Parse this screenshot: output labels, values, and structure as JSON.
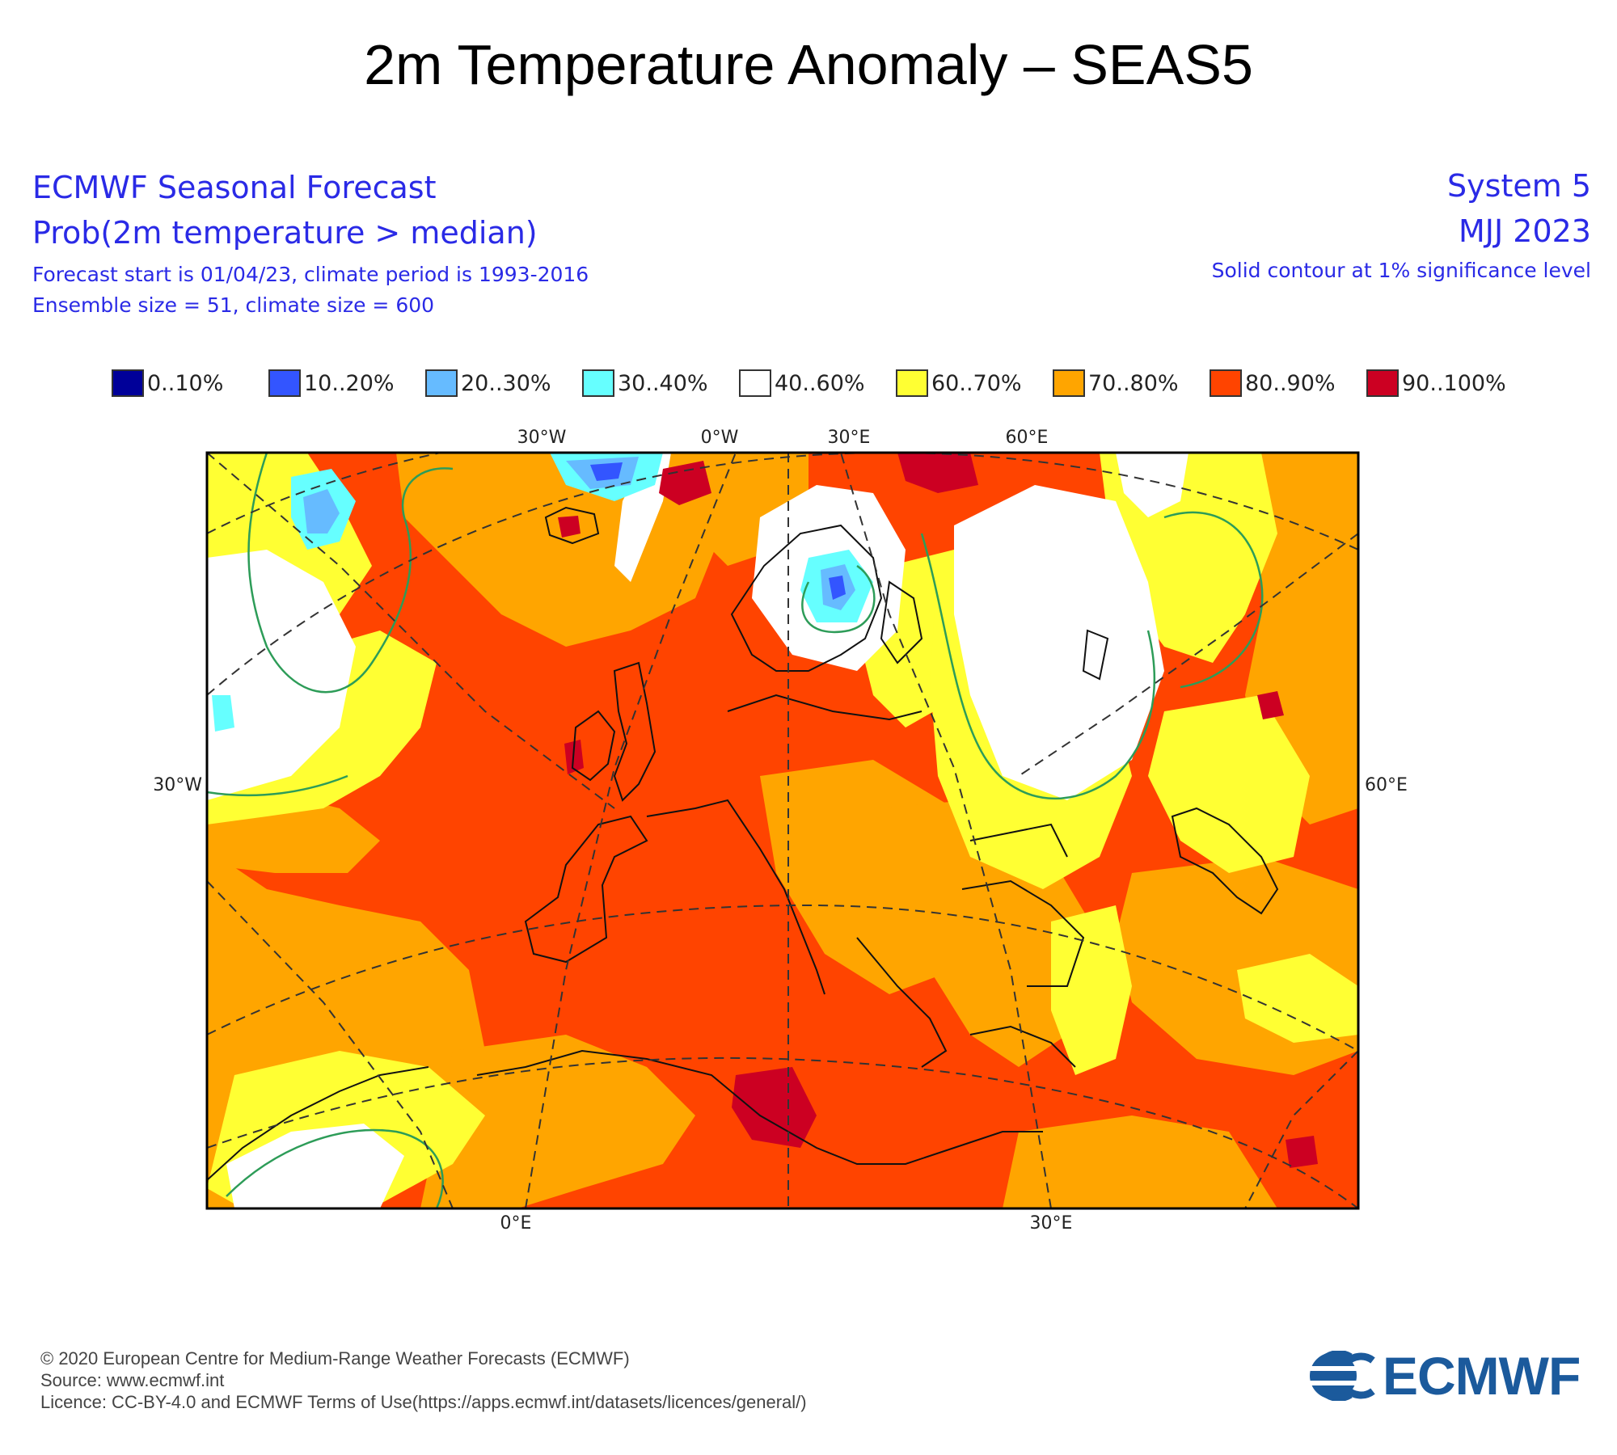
{
  "title": "2m Temperature Anomaly – SEAS5",
  "header": {
    "left": [
      "ECMWF Seasonal Forecast",
      "Prob(2m temperature > median)",
      "Forecast start is 01/04/23, climate period is 1993-2016",
      "Ensemble size = 51, climate size = 600"
    ],
    "right": [
      "System 5",
      "MJJ 2023",
      "Solid contour at 1% significance level"
    ]
  },
  "legend": [
    {
      "label": "0..10%",
      "color": "#000099"
    },
    {
      "label": "10..20%",
      "color": "#3355ff"
    },
    {
      "label": "20..30%",
      "color": "#66bbff"
    },
    {
      "label": "30..40%",
      "color": "#66ffff"
    },
    {
      "label": "40..60%",
      "color": "#ffffff"
    },
    {
      "label": "60..70%",
      "color": "#ffff33"
    },
    {
      "label": "70..80%",
      "color": "#ffa500"
    },
    {
      "label": "80..90%",
      "color": "#ff4400"
    },
    {
      "label": "90..100%",
      "color": "#cc0022"
    }
  ],
  "map": {
    "top_axis_labels": [
      "30°W",
      "0°W",
      "30°E",
      "60°E"
    ],
    "left_axis_label": "30°W",
    "right_axis_label": "60°E",
    "bottom_axis_labels": [
      "0°E",
      "30°E"
    ]
  },
  "footer": {
    "copyright": "© 2020 European Centre for Medium-Range Weather Forecasts (ECMWF)",
    "source": "Source: www.ecmwf.int",
    "licence": "Licence: CC-BY-4.0 and ECMWF Terms of Use(https://apps.ecmwf.int/datasets/licences/general/)",
    "logo_text": "ECMWF"
  }
}
